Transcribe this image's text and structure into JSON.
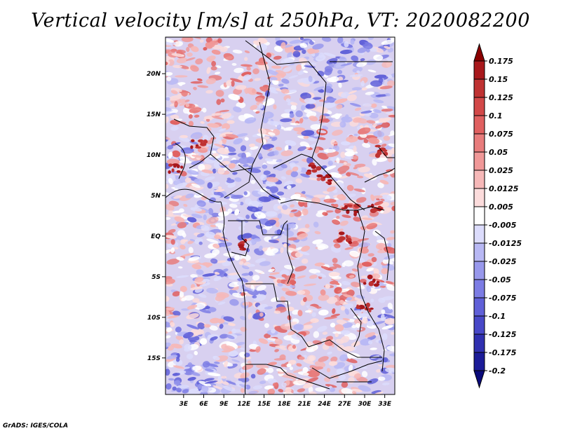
{
  "title": "Vertical velocity [m/s] at 250hPa, VT: 2020082200",
  "footer": "GrADS: IGES/COLA",
  "map": {
    "lat_labels": [
      "20N",
      "15N",
      "10N",
      "5N",
      "EQ",
      "5S",
      "10S",
      "15S"
    ],
    "lon_labels": [
      "3E",
      "6E",
      "9E",
      "12E",
      "15E",
      "18E",
      "21E",
      "24E",
      "27E",
      "30E",
      "33E"
    ],
    "lat_range": [
      -19.5,
      24.5
    ],
    "lon_range": [
      0.3,
      34.5
    ]
  },
  "colorbar": {
    "labels": [
      "0.175",
      "0.15",
      "0.125",
      "0.1",
      "0.075",
      "0.05",
      "0.025",
      "0.0125",
      "0.005",
      "-0.005",
      "-0.0125",
      "-0.025",
      "-0.05",
      "-0.075",
      "-0.1",
      "-0.125",
      "-0.175",
      "-0.2"
    ],
    "colors": [
      "#8b0000",
      "#a8181c",
      "#bf3232",
      "#d24848",
      "#e06060",
      "#e87c7c",
      "#f09898",
      "#f6b8b8",
      "#fcdcdc",
      "#ffffff",
      "#dcdcfc",
      "#b8b8f4",
      "#9898ec",
      "#7c7ce4",
      "#6060d8",
      "#4848c8",
      "#3030b0",
      "#1c1c98",
      "#0a0a7a"
    ]
  },
  "chart_data": {
    "type": "heatmap",
    "title": "Vertical velocity [m/s] at 250hPa, VT: 2020082200",
    "variable": "Vertical velocity",
    "units": "m/s",
    "level": "250hPa",
    "valid_time": "2020082200",
    "x_ticks": [
      "3E",
      "6E",
      "9E",
      "12E",
      "15E",
      "18E",
      "21E",
      "24E",
      "27E",
      "30E",
      "33E"
    ],
    "y_ticks": [
      "20N",
      "15N",
      "10N",
      "5N",
      "EQ",
      "5S",
      "10S",
      "15S"
    ],
    "color_levels": [
      -0.2,
      -0.175,
      -0.125,
      -0.1,
      -0.075,
      -0.05,
      -0.025,
      -0.0125,
      -0.005,
      0.005,
      0.0125,
      0.025,
      0.05,
      0.075,
      0.1,
      0.125,
      0.15,
      0.175
    ]
  }
}
